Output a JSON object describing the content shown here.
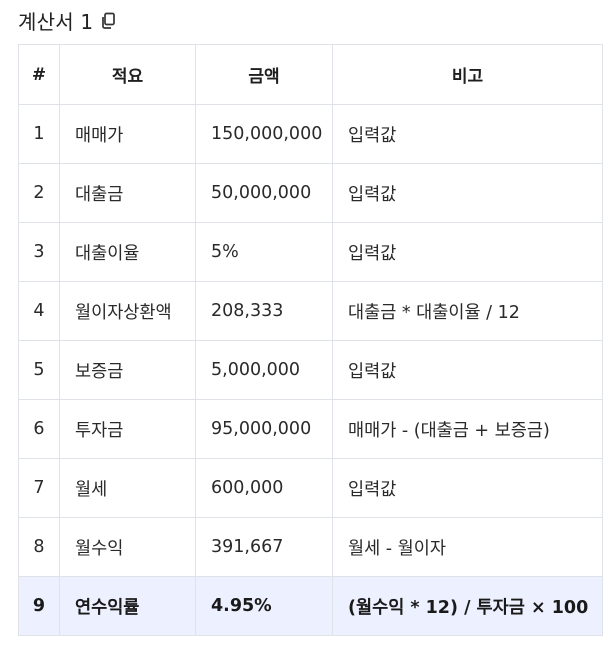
{
  "title": "계산서 1",
  "icons": {
    "copy": "copy-icon"
  },
  "table": {
    "headers": [
      "#",
      "적요",
      "금액",
      "비고"
    ],
    "rows": [
      {
        "num": "1",
        "item": "매매가",
        "amount": "150,000,000",
        "note": "입력값"
      },
      {
        "num": "2",
        "item": "대출금",
        "amount": "50,000,000",
        "note": "입력값"
      },
      {
        "num": "3",
        "item": "대출이율",
        "amount": "5%",
        "note": "입력값"
      },
      {
        "num": "4",
        "item": "월이자상환액",
        "amount": "208,333",
        "note": "대출금 * 대출이율 / 12"
      },
      {
        "num": "5",
        "item": "보증금",
        "amount": "5,000,000",
        "note": "입력값"
      },
      {
        "num": "6",
        "item": "투자금",
        "amount": "95,000,000",
        "note": "매매가 - (대출금 + 보증금)"
      },
      {
        "num": "7",
        "item": "월세",
        "amount": "600,000",
        "note": "입력값"
      },
      {
        "num": "8",
        "item": "월수익",
        "amount": "391,667",
        "note": "월세 - 월이자"
      },
      {
        "num": "9",
        "item": "연수익률",
        "amount": "4.95%",
        "note": "(월수익 * 12) / 투자금 × 100"
      }
    ]
  },
  "colors": {
    "highlight_row_bg": "#edf0ff",
    "border": "#dfe3e8"
  }
}
